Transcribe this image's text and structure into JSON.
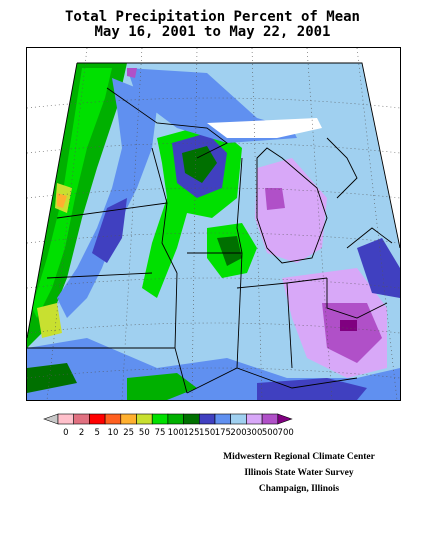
{
  "title_line1": "Total Precipitation Percent of Mean",
  "title_line2": "May 16, 2001 to May 22, 2001",
  "legend": {
    "labels": [
      "0",
      "2",
      "5",
      "10",
      "25",
      "50",
      "75",
      "100",
      "125",
      "150",
      "175",
      "200",
      "300",
      "500",
      "700"
    ],
    "colors": [
      "#c8c8c8",
      "#ffc0cb",
      "#e07080",
      "#ff0000",
      "#ff6020",
      "#ffb030",
      "#c8e030",
      "#00e000",
      "#00b000",
      "#007000",
      "#4040c0",
      "#6090f0",
      "#a0d0f0",
      "#d8a8f8",
      "#b050c8",
      "#800080"
    ]
  },
  "credits": {
    "line1": "Midwestern Regional Climate Center",
    "line2": "Illinois State Water Survey",
    "line3": "Champaign, Illinois"
  }
}
